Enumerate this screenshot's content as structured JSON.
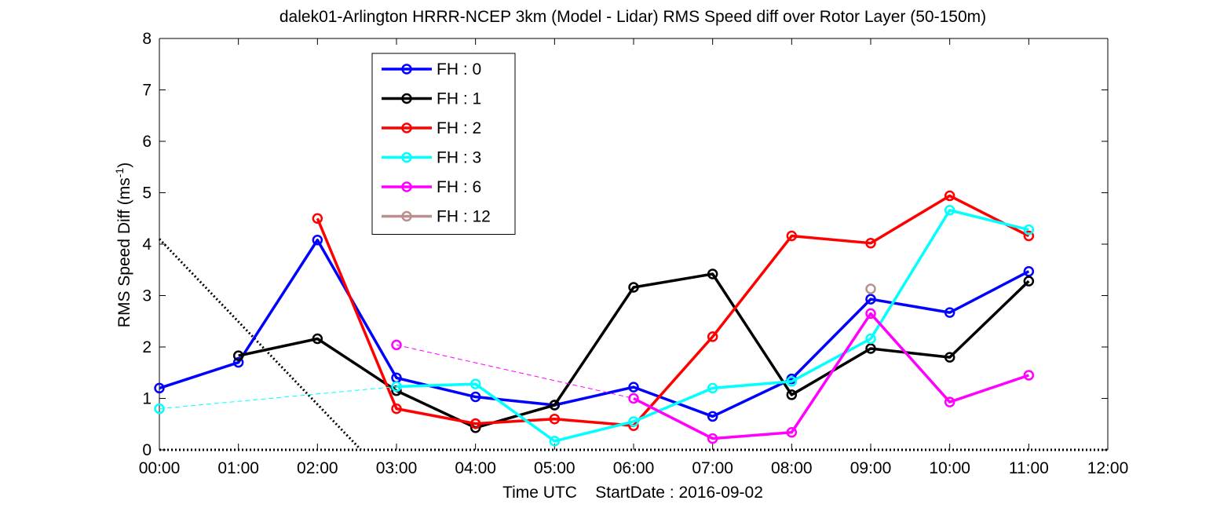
{
  "chart_data": {
    "type": "line",
    "title": "dalek01-Arlington HRRR-NCEP 3km (Model - Lidar) RMS Speed diff over Rotor Layer (50-150m)",
    "xlabel": "Time UTC    StartDate : 2016-09-02",
    "ylabel": {
      "base": "RMS Speed Diff (ms",
      "sup": "-1",
      "close": ")"
    },
    "x_ticks": [
      "00:00",
      "01:00",
      "02:00",
      "03:00",
      "04:00",
      "05:00",
      "06:00",
      "07:00",
      "08:00",
      "09:00",
      "10:00",
      "11:00",
      "12:00"
    ],
    "y_ticks": [
      "0",
      "1",
      "2",
      "3",
      "4",
      "5",
      "6",
      "7",
      "8"
    ],
    "xlim": [
      0,
      12
    ],
    "ylim": [
      0,
      8
    ],
    "grid": false,
    "legend_position": "top-left",
    "series": [
      {
        "name": "FH : 0",
        "color": "#0000ff",
        "segments": [
          [
            [
              0,
              1.2
            ],
            [
              1,
              1.7
            ],
            [
              2,
              4.08
            ],
            [
              3,
              1.4
            ],
            [
              4,
              1.03
            ],
            [
              5,
              0.87
            ],
            [
              6,
              1.22
            ],
            [
              7,
              0.65
            ],
            [
              8,
              1.38
            ],
            [
              9,
              2.93
            ],
            [
              10,
              2.67
            ],
            [
              11,
              3.47
            ]
          ]
        ],
        "dashed": []
      },
      {
        "name": "FH : 1",
        "color": "#000000",
        "segments": [
          [
            [
              1,
              1.83
            ],
            [
              2,
              2.16
            ],
            [
              3,
              1.15
            ],
            [
              4,
              0.43
            ],
            [
              5,
              0.87
            ],
            [
              6,
              3.16
            ],
            [
              7,
              3.42
            ],
            [
              8,
              1.07
            ],
            [
              9,
              1.97
            ],
            [
              10,
              1.8
            ],
            [
              11,
              3.28
            ]
          ]
        ],
        "dashed": []
      },
      {
        "name": "FH : 2",
        "color": "#ff0000",
        "segments": [
          [
            [
              2,
              4.5
            ],
            [
              3,
              0.8
            ],
            [
              4,
              0.51
            ],
            [
              5,
              0.6
            ],
            [
              6,
              0.47
            ],
            [
              7,
              2.2
            ],
            [
              8,
              4.16
            ],
            [
              9,
              4.02
            ],
            [
              10,
              4.94
            ],
            [
              11,
              4.16
            ]
          ]
        ],
        "dashed": []
      },
      {
        "name": "FH : 3",
        "color": "#00ffff",
        "segments": [
          [
            [
              3,
              1.23
            ],
            [
              4,
              1.28
            ],
            [
              5,
              0.17
            ],
            [
              6,
              0.55
            ],
            [
              7,
              1.2
            ],
            [
              8,
              1.33
            ],
            [
              9,
              2.16
            ],
            [
              10,
              4.66
            ],
            [
              11,
              4.28
            ]
          ]
        ],
        "dashed": [
          [
            [
              0,
              0.8
            ],
            [
              3,
              1.23
            ]
          ]
        ],
        "isolated": [
          [
            0,
            0.8
          ]
        ]
      },
      {
        "name": "FH : 6",
        "color": "#ff00ff",
        "segments": [
          [
            [
              6,
              1.0
            ],
            [
              7,
              0.22
            ],
            [
              8,
              0.34
            ],
            [
              9,
              2.65
            ],
            [
              10,
              0.93
            ],
            [
              11,
              1.45
            ]
          ]
        ],
        "dashed": [
          [
            [
              3,
              2.04
            ],
            [
              6,
              1.0
            ]
          ]
        ],
        "isolated": [
          [
            3,
            2.04
          ]
        ]
      },
      {
        "name": "FH : 12",
        "color": "#bc8f8f",
        "segments": [],
        "dashed": [],
        "isolated": [
          [
            9,
            3.13
          ]
        ]
      }
    ],
    "reference_lines": [
      {
        "style": "dotted",
        "color": "#000000",
        "points": [
          [
            0,
            4.1
          ],
          [
            2.55,
            0
          ]
        ]
      },
      {
        "style": "dotted",
        "color": "#000000",
        "points": [
          [
            0,
            0
          ],
          [
            12,
            0
          ]
        ]
      }
    ]
  }
}
